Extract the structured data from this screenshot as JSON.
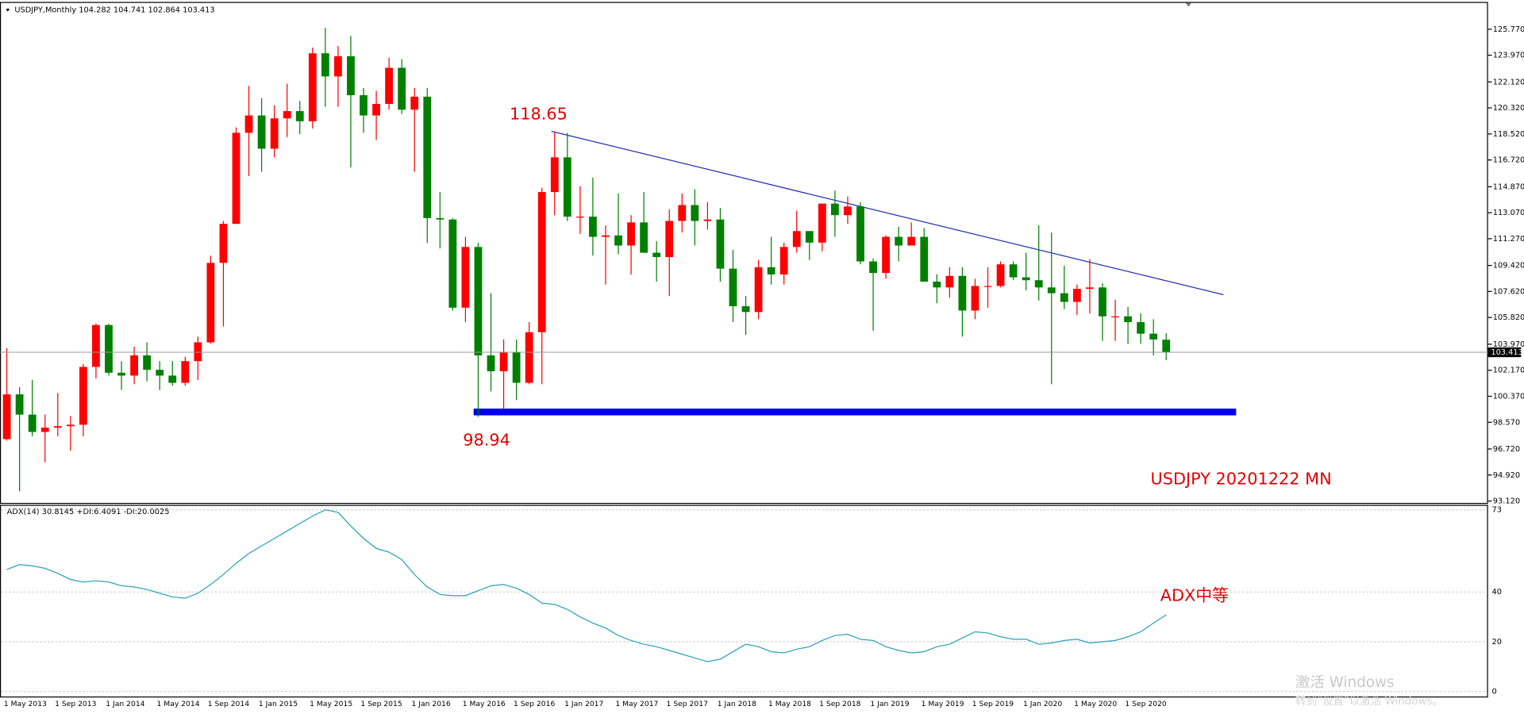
{
  "chart_data": [
    {
      "type": "candlestick",
      "title": "USDJPY,Monthly 104.282 104.741 102.864 103.413",
      "categories": [
        "1 May 2013",
        null,
        null,
        null,
        "1 Sep 2013",
        null,
        null,
        null,
        "1 Jan 2014",
        null,
        null,
        null,
        "1 May 2014",
        null,
        null,
        null,
        "1 Sep 2014",
        null,
        null,
        null,
        "1 Jan 2015",
        null,
        null,
        null,
        "1 May 2015",
        null,
        null,
        null,
        "1 Sep 2015",
        null,
        null,
        null,
        "1 Jan 2016",
        null,
        null,
        null,
        "1 May 2016",
        null,
        null,
        null,
        "1 Sep 2016",
        null,
        null,
        null,
        "1 Jan 2017",
        null,
        null,
        null,
        "1 May 2017",
        null,
        null,
        null,
        "1 Sep 2017",
        null,
        null,
        null,
        "1 Jan 2018",
        null,
        null,
        null,
        "1 May 2018",
        null,
        null,
        null,
        "1 Sep 2018",
        null,
        null,
        null,
        "1 Jan 2019",
        null,
        null,
        null,
        "1 May 2019",
        null,
        null,
        null,
        "1 Sep 2019",
        null,
        null,
        null,
        "1 Jan 2020",
        null,
        null,
        null,
        "1 May 2020",
        null,
        null,
        null,
        "1 Sep 2020",
        null,
        null,
        null
      ],
      "open": [
        97.4,
        100.5,
        99.1,
        97.9,
        98.2,
        98.3,
        98.4,
        102.4,
        105.3,
        102.0,
        101.8,
        103.2,
        102.2,
        101.8,
        101.3,
        102.8,
        104.1,
        109.6,
        112.3,
        118.6,
        119.8,
        117.5,
        119.6,
        120.1,
        119.4,
        124.1,
        122.5,
        123.9,
        121.2,
        119.8,
        120.6,
        123.1,
        120.2,
        121.1,
        112.7,
        112.6,
        106.5,
        110.7,
        103.2,
        102.1,
        103.4,
        101.3,
        104.8,
        114.5,
        116.9,
        112.8,
        112.8,
        111.4,
        111.5,
        110.8,
        112.4,
        110.3,
        110.0,
        112.5,
        113.6,
        112.5,
        112.6,
        109.2,
        106.6,
        106.2,
        109.3,
        108.8,
        110.7,
        111.8,
        111.0,
        113.7,
        112.9,
        113.5,
        109.7,
        108.9,
        111.4,
        110.8,
        111.4,
        108.3,
        107.9,
        108.7,
        106.3,
        108.0,
        108.0,
        109.5,
        108.6,
        108.4,
        107.9,
        107.5,
        106.9,
        107.8,
        107.9,
        105.9,
        105.9,
        105.5,
        104.7,
        104.282
      ],
      "high": [
        103.7,
        101.0,
        101.5,
        99.1,
        100.6,
        99.0,
        102.6,
        105.4,
        105.4,
        102.8,
        103.8,
        104.1,
        102.8,
        102.8,
        103.1,
        104.5,
        110.1,
        112.5,
        118.98,
        121.85,
        121.0,
        120.5,
        122.0,
        120.8,
        124.5,
        125.86,
        124.6,
        125.3,
        121.7,
        121.5,
        123.8,
        123.7,
        121.7,
        121.7,
        114.5,
        112.7,
        111.4,
        111.0,
        107.5,
        104.3,
        104.3,
        105.5,
        114.8,
        118.65,
        118.6,
        114.9,
        115.5,
        112.2,
        114.4,
        112.9,
        114.5,
        111.1,
        113.3,
        114.4,
        114.7,
        113.8,
        113.4,
        110.5,
        107.3,
        109.8,
        111.4,
        111.0,
        113.2,
        111.8,
        113.7,
        114.6,
        114.2,
        113.8,
        109.9,
        111.5,
        112.1,
        112.4,
        112.0,
        108.8,
        109.3,
        109.3,
        108.5,
        109.3,
        109.7,
        109.7,
        110.3,
        112.2,
        111.7,
        109.4,
        108.1,
        109.85,
        108.2,
        107.05,
        106.55,
        106.1,
        105.7,
        104.741
      ],
      "low": [
        97.3,
        93.8,
        97.6,
        95.8,
        97.6,
        96.6,
        97.6,
        101.6,
        101.8,
        100.8,
        101.2,
        101.4,
        100.8,
        101.1,
        101.1,
        101.5,
        104.0,
        105.2,
        112.3,
        115.6,
        115.9,
        116.9,
        118.3,
        118.5,
        118.9,
        120.4,
        120.4,
        116.2,
        118.6,
        118.1,
        120.2,
        119.9,
        115.9,
        110.98,
        110.6,
        106.3,
        105.5,
        98.94,
        100.7,
        99.5,
        100.1,
        101.2,
        101.2,
        112.9,
        112.5,
        111.6,
        110.1,
        108.1,
        110.2,
        108.8,
        110.6,
        108.3,
        107.3,
        111.7,
        110.8,
        111.9,
        108.3,
        105.5,
        104.6,
        105.7,
        108.1,
        108.1,
        110.3,
        109.8,
        110.4,
        111.4,
        112.3,
        109.5,
        104.9,
        108.5,
        109.7,
        110.8,
        108.3,
        106.8,
        107.2,
        104.5,
        105.7,
        106.5,
        107.9,
        108.4,
        107.7,
        107.0,
        101.2,
        106.4,
        105.99,
        106.1,
        104.2,
        104.2,
        104.0,
        104.0,
        103.2,
        102.864
      ],
      "close": [
        100.5,
        99.1,
        97.9,
        98.2,
        98.3,
        98.4,
        102.4,
        105.3,
        102.0,
        101.8,
        103.2,
        102.2,
        101.8,
        101.3,
        102.8,
        104.1,
        109.6,
        112.3,
        118.6,
        119.8,
        117.5,
        119.6,
        120.1,
        119.4,
        124.1,
        122.5,
        123.9,
        121.2,
        119.8,
        120.6,
        123.1,
        120.2,
        121.1,
        112.7,
        112.6,
        106.5,
        110.7,
        103.2,
        102.1,
        103.4,
        101.3,
        104.8,
        114.5,
        116.9,
        112.8,
        112.8,
        111.4,
        111.5,
        110.8,
        112.4,
        110.3,
        110.0,
        112.5,
        113.6,
        112.5,
        112.6,
        109.2,
        106.6,
        106.2,
        109.3,
        108.8,
        110.7,
        111.8,
        111.0,
        113.7,
        112.9,
        113.5,
        109.7,
        108.9,
        111.4,
        110.8,
        111.4,
        108.3,
        107.9,
        108.7,
        106.3,
        108.0,
        108.0,
        109.5,
        108.6,
        108.4,
        107.9,
        107.5,
        106.9,
        107.8,
        107.9,
        105.9,
        105.9,
        105.5,
        104.7,
        104.3,
        103.413
      ],
      "up_color": "#ff0000",
      "down_color": "#008000",
      "ylim": [
        92.99,
        127.52
      ],
      "yticks": [
        {
          "value": 93.12,
          "label": "93.120"
        },
        {
          "value": 94.92,
          "label": "94.920"
        },
        {
          "value": 96.72,
          "label": "96.720"
        },
        {
          "value": 98.57,
          "label": "98.570"
        },
        {
          "value": 100.37,
          "label": "100.370"
        },
        {
          "value": 102.17,
          "label": "102.170"
        },
        {
          "value": 103.97,
          "label": "103.970"
        },
        {
          "value": 105.82,
          "label": "105.820"
        },
        {
          "value": 107.62,
          "label": "107.620"
        },
        {
          "value": 109.42,
          "label": "109.420"
        },
        {
          "value": 111.27,
          "label": "111.270"
        },
        {
          "value": 113.07,
          "label": "113.070"
        },
        {
          "value": 114.87,
          "label": "114.870"
        },
        {
          "value": 116.72,
          "label": "116.720"
        },
        {
          "value": 118.52,
          "label": "118.520"
        },
        {
          "value": 120.32,
          "label": "120.320"
        },
        {
          "value": 122.12,
          "label": "122.120"
        },
        {
          "value": 123.97,
          "label": "123.970"
        },
        {
          "value": 125.77,
          "label": "125.770"
        }
      ],
      "grid": false,
      "annotations": [
        "118.65",
        "98.94",
        "USDJPY 20201222 MN"
      ]
    },
    {
      "type": "line",
      "title": "ADX(14) 30.8145 +DI:6.4091 -DI:20.0025",
      "color": "#2aa0b8",
      "values": [
        49,
        51,
        50.5,
        49.5,
        47.5,
        45,
        44,
        44.5,
        44,
        42.5,
        42,
        41,
        39.5,
        38,
        37.5,
        39.5,
        43,
        47,
        51.5,
        55.5,
        58.5,
        61.5,
        64.5,
        67.5,
        70.5,
        73,
        72,
        66.5,
        61.5,
        57.5,
        56,
        53,
        47,
        42,
        39,
        38.5,
        38.5,
        40.5,
        42.5,
        43,
        41.5,
        39,
        35.5,
        35,
        33,
        30,
        27.5,
        25.5,
        22.5,
        20.5,
        19,
        18,
        16.5,
        15,
        13.5,
        12,
        13,
        16,
        19,
        18,
        16,
        15.5,
        17,
        18,
        20.5,
        22.5,
        23,
        21,
        20.5,
        18,
        16.5,
        15.5,
        16,
        18,
        19,
        21.5,
        24,
        23.5,
        22,
        21,
        21,
        19,
        19.5,
        20.5,
        21,
        19.5,
        20,
        20.5,
        22,
        24,
        27.5,
        30.8145
      ],
      "ylim": [
        -2,
        75
      ],
      "yticks": [
        0,
        20,
        40,
        73
      ],
      "grid": true,
      "annotations": [
        "ADX中等"
      ]
    }
  ],
  "watermark": [
    "激活 Windows",
    "转到“设置”以激活 Windows。"
  ]
}
